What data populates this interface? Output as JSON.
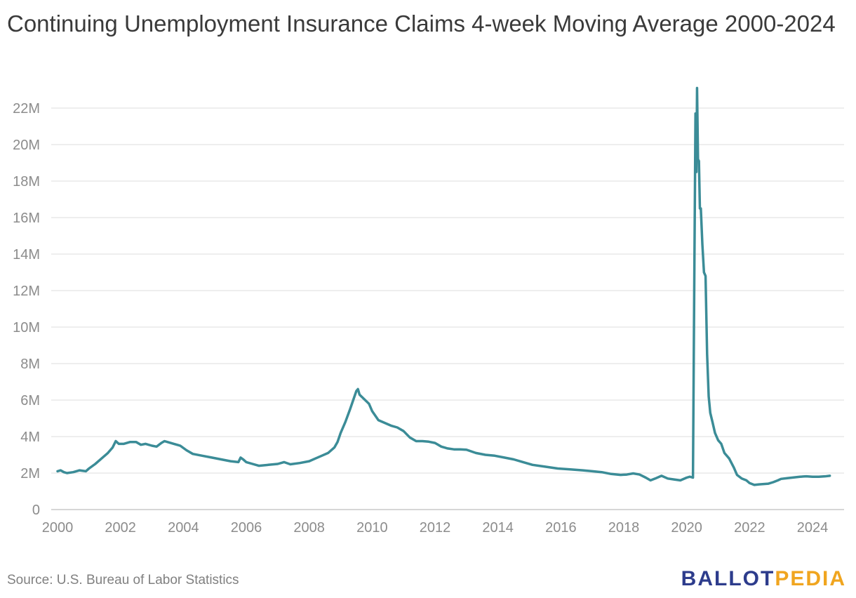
{
  "title": "Continuing Unemployment Insurance Claims 4-week Moving Average 2000-2024",
  "source": "Source: U.S. Bureau of Labor Statistics",
  "logo": {
    "part1": "BALLOT",
    "part2": "PEDIA"
  },
  "colors": {
    "line": "#3b8c97",
    "grid": "#e3e3e3",
    "tick": "#8c8c8c",
    "logo_primary": "#2d3c8c",
    "logo_accent": "#f0a51f"
  },
  "chart_data": {
    "type": "line",
    "title": "Continuing Unemployment Insurance Claims 4-week Moving Average 2000-2024",
    "xlabel": "",
    "ylabel": "",
    "grid": true,
    "xlim": [
      2000,
      2024.6
    ],
    "ylim": [
      0,
      23000000
    ],
    "x_ticks": [
      2000,
      2002,
      2004,
      2006,
      2008,
      2010,
      2012,
      2014,
      2016,
      2018,
      2020,
      2022,
      2024
    ],
    "x_tick_labels": [
      "2000",
      "2002",
      "2004",
      "2006",
      "2008",
      "2010",
      "2012",
      "2014",
      "2016",
      "2018",
      "2020",
      "2022",
      "2024"
    ],
    "y_ticks": [
      0,
      2000000,
      4000000,
      6000000,
      8000000,
      10000000,
      12000000,
      14000000,
      16000000,
      18000000,
      20000000,
      22000000
    ],
    "y_tick_labels": [
      "0",
      "2M",
      "4M",
      "6M",
      "8M",
      "10M",
      "12M",
      "14M",
      "16M",
      "18M",
      "20M",
      "22M"
    ],
    "series": [
      {
        "color": "#3b8c97",
        "x": [
          2000.0,
          2000.1,
          2000.2,
          2000.3,
          2000.5,
          2000.7,
          2000.9,
          2001.0,
          2001.2,
          2001.4,
          2001.6,
          2001.75,
          2001.85,
          2001.95,
          2002.1,
          2002.3,
          2002.5,
          2002.65,
          2002.8,
          2003.0,
          2003.15,
          2003.3,
          2003.4,
          2003.5,
          2003.7,
          2003.9,
          2004.1,
          2004.3,
          2004.6,
          2004.9,
          2005.2,
          2005.5,
          2005.75,
          2005.82,
          2005.9,
          2006.0,
          2006.2,
          2006.4,
          2006.7,
          2007.0,
          2007.2,
          2007.4,
          2007.7,
          2008.0,
          2008.2,
          2008.4,
          2008.6,
          2008.8,
          2008.9,
          2009.0,
          2009.15,
          2009.3,
          2009.4,
          2009.5,
          2009.55,
          2009.6,
          2009.75,
          2009.9,
          2010.0,
          2010.2,
          2010.4,
          2010.6,
          2010.8,
          2011.0,
          2011.2,
          2011.4,
          2011.6,
          2011.8,
          2012.0,
          2012.2,
          2012.4,
          2012.6,
          2012.8,
          2013.0,
          2013.3,
          2013.6,
          2013.9,
          2014.2,
          2014.5,
          2014.8,
          2015.1,
          2015.5,
          2015.9,
          2016.3,
          2016.7,
          2017.0,
          2017.3,
          2017.6,
          2017.9,
          2018.1,
          2018.3,
          2018.5,
          2018.7,
          2018.85,
          2019.0,
          2019.2,
          2019.4,
          2019.6,
          2019.8,
          2020.0,
          2020.1,
          2020.2,
          2020.24,
          2020.28,
          2020.31,
          2020.33,
          2020.36,
          2020.39,
          2020.42,
          2020.45,
          2020.5,
          2020.55,
          2020.6,
          2020.65,
          2020.7,
          2020.75,
          2020.82,
          2020.9,
          2021.0,
          2021.1,
          2021.2,
          2021.35,
          2021.5,
          2021.6,
          2021.75,
          2021.9,
          2022.0,
          2022.15,
          2022.3,
          2022.45,
          2022.6,
          2022.75,
          2022.9,
          2023.0,
          2023.2,
          2023.4,
          2023.6,
          2023.8,
          2024.0,
          2024.2,
          2024.4,
          2024.55
        ],
        "values": [
          2100000,
          2150000,
          2050000,
          2000000,
          2050000,
          2150000,
          2100000,
          2250000,
          2500000,
          2800000,
          3100000,
          3400000,
          3750000,
          3600000,
          3600000,
          3700000,
          3700000,
          3550000,
          3600000,
          3500000,
          3450000,
          3650000,
          3750000,
          3700000,
          3600000,
          3500000,
          3250000,
          3050000,
          2950000,
          2850000,
          2750000,
          2650000,
          2600000,
          2850000,
          2750000,
          2600000,
          2500000,
          2400000,
          2450000,
          2500000,
          2600000,
          2480000,
          2550000,
          2650000,
          2800000,
          2950000,
          3100000,
          3400000,
          3700000,
          4200000,
          4800000,
          5500000,
          6000000,
          6500000,
          6600000,
          6300000,
          6050000,
          5800000,
          5400000,
          4900000,
          4750000,
          4600000,
          4500000,
          4300000,
          3950000,
          3750000,
          3750000,
          3720000,
          3650000,
          3450000,
          3350000,
          3300000,
          3300000,
          3280000,
          3100000,
          3000000,
          2950000,
          2850000,
          2750000,
          2600000,
          2450000,
          2350000,
          2250000,
          2200000,
          2150000,
          2100000,
          2050000,
          1950000,
          1900000,
          1920000,
          1980000,
          1920000,
          1750000,
          1600000,
          1700000,
          1850000,
          1700000,
          1650000,
          1600000,
          1750000,
          1800000,
          1750000,
          12000000,
          21700000,
          18500000,
          23100000,
          19200000,
          19100000,
          16500000,
          16500000,
          14500000,
          13000000,
          12800000,
          8500000,
          6200000,
          5300000,
          4800000,
          4200000,
          3800000,
          3600000,
          3100000,
          2800000,
          2300000,
          1900000,
          1700000,
          1600000,
          1450000,
          1350000,
          1380000,
          1400000,
          1420000,
          1500000,
          1600000,
          1680000,
          1720000,
          1760000,
          1800000,
          1820000,
          1800000,
          1800000,
          1820000,
          1850000
        ]
      }
    ]
  }
}
